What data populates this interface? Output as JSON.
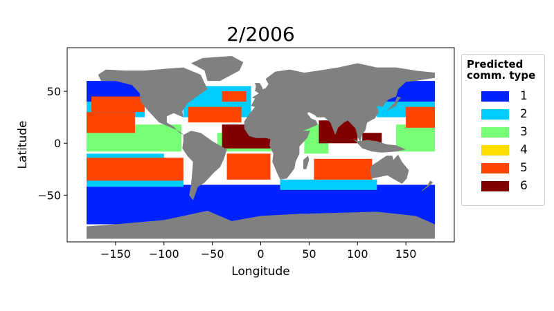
{
  "title": "2/2006",
  "chart_data": {
    "type": "map",
    "title": "2/2006",
    "xlabel": "Longitude",
    "ylabel": "Latitude",
    "xlim": [
      -200,
      200
    ],
    "ylim": [
      -95,
      92
    ],
    "xticks": [
      -150,
      -100,
      -50,
      0,
      50,
      100,
      150
    ],
    "yticks": [
      -50,
      0,
      50
    ],
    "xtick_labels": [
      "−150",
      "−100",
      "−50",
      "0",
      "50",
      "100",
      "150"
    ],
    "ytick_labels": [
      "−50",
      "0",
      "50"
    ],
    "land_color": "#808080",
    "legend": {
      "title": "Predicted\ncomm. type",
      "position": "right",
      "items": [
        {
          "label": "1",
          "color": "#0022ff"
        },
        {
          "label": "2",
          "color": "#00ccff"
        },
        {
          "label": "3",
          "color": "#77ff77"
        },
        {
          "label": "4",
          "color": "#ffdd00"
        },
        {
          "label": "5",
          "color": "#ff4400"
        },
        {
          "label": "6",
          "color": "#800000"
        }
      ]
    },
    "regions": [
      {
        "type": 1,
        "lon": [
          -180,
          180
        ],
        "lat": [
          -78,
          -40
        ]
      },
      {
        "type": 1,
        "lon": [
          -180,
          -115
        ],
        "lat": [
          38,
          60
        ]
      },
      {
        "type": 1,
        "lon": [
          130,
          180
        ],
        "lat": [
          40,
          60
        ]
      },
      {
        "type": 2,
        "lon": [
          -180,
          -120
        ],
        "lat": [
          25,
          40
        ]
      },
      {
        "type": 2,
        "lon": [
          -180,
          -80
        ],
        "lat": [
          -42,
          -28
        ]
      },
      {
        "type": 2,
        "lon": [
          -180,
          -100
        ],
        "lat": [
          -20,
          -10
        ]
      },
      {
        "type": 2,
        "lon": [
          120,
          180
        ],
        "lat": [
          25,
          40
        ]
      },
      {
        "type": 2,
        "lon": [
          20,
          120
        ],
        "lat": [
          -45,
          -35
        ]
      },
      {
        "type": 2,
        "lon": [
          -80,
          -10
        ],
        "lat": [
          25,
          55
        ]
      },
      {
        "type": 3,
        "lon": [
          -180,
          -82
        ],
        "lat": [
          -8,
          18
        ]
      },
      {
        "type": 3,
        "lon": [
          -45,
          15
        ],
        "lat": [
          -8,
          10
        ]
      },
      {
        "type": 3,
        "lon": [
          45,
          70
        ],
        "lat": [
          -10,
          18
        ]
      },
      {
        "type": 3,
        "lon": [
          140,
          180
        ],
        "lat": [
          -8,
          18
        ]
      },
      {
        "type": 5,
        "lon": [
          -180,
          -80
        ],
        "lat": [
          -36,
          -14
        ]
      },
      {
        "type": 5,
        "lon": [
          -180,
          -130
        ],
        "lat": [
          10,
          30
        ]
      },
      {
        "type": 5,
        "lon": [
          -175,
          -120
        ],
        "lat": [
          30,
          45
        ]
      },
      {
        "type": 5,
        "lon": [
          -75,
          -20
        ],
        "lat": [
          20,
          35
        ]
      },
      {
        "type": 5,
        "lon": [
          -35,
          10
        ],
        "lat": [
          -35,
          -10
        ]
      },
      {
        "type": 5,
        "lon": [
          55,
          115
        ],
        "lat": [
          -35,
          -15
        ]
      },
      {
        "type": 5,
        "lon": [
          150,
          180
        ],
        "lat": [
          15,
          35
        ]
      },
      {
        "type": 5,
        "lon": [
          -40,
          -15
        ],
        "lat": [
          40,
          50
        ]
      },
      {
        "type": 6,
        "lon": [
          -40,
          10
        ],
        "lat": [
          -5,
          18
        ]
      },
      {
        "type": 6,
        "lon": [
          60,
          100
        ],
        "lat": [
          0,
          22
        ]
      },
      {
        "type": 6,
        "lon": [
          105,
          125
        ],
        "lat": [
          -3,
          10
        ]
      }
    ]
  }
}
